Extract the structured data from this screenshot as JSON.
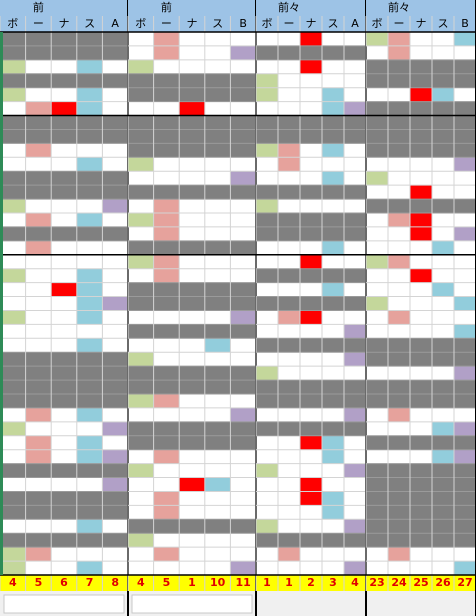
{
  "table": {
    "blocks": [
      {
        "title": "前",
        "columns": [
          "ボ",
          "ー",
          "ナ",
          "ス",
          "A"
        ],
        "numbers": [
          4,
          5,
          6,
          7,
          8
        ]
      },
      {
        "title": "前",
        "columns": [
          "ボ",
          "ー",
          "ナ",
          "ス",
          "B"
        ],
        "numbers": [
          4,
          5,
          1,
          10,
          11
        ]
      },
      {
        "title": "前々",
        "columns": [
          "ボ",
          "ー",
          "ナ",
          "ス",
          "A"
        ],
        "numbers": [
          1,
          1,
          2,
          3,
          4
        ]
      },
      {
        "title": "前々",
        "columns": [
          "ボ",
          "ー",
          "ナ",
          "ス",
          "B"
        ],
        "numbers": [
          23,
          24,
          25,
          26,
          27
        ]
      }
    ]
  }
}
